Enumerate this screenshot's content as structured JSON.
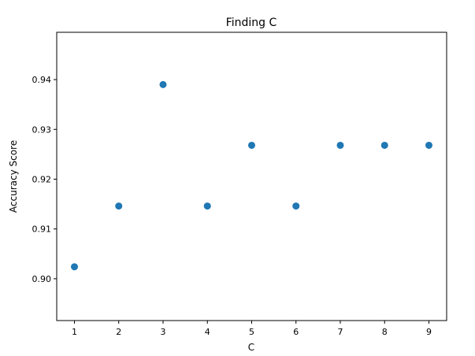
{
  "chart_data": {
    "type": "scatter",
    "title": "Finding C",
    "xlabel": "C",
    "ylabel": "Accuracy Score",
    "x": [
      1,
      2,
      3,
      4,
      5,
      6,
      7,
      8,
      9
    ],
    "y": [
      0.9024,
      0.9146,
      0.939,
      0.9146,
      0.9268,
      0.9146,
      0.9268,
      0.9268,
      0.9268
    ],
    "xlim": [
      0.6,
      9.4
    ],
    "ylim": [
      0.8916,
      0.9495
    ],
    "xticks": [
      1,
      2,
      3,
      4,
      5,
      6,
      7,
      8,
      9
    ],
    "xtick_labels": [
      "1",
      "2",
      "3",
      "4",
      "5",
      "6",
      "7",
      "8",
      "9"
    ],
    "yticks": [
      0.9,
      0.91,
      0.92,
      0.93,
      0.94
    ],
    "ytick_labels": [
      "0.90",
      "0.91",
      "0.92",
      "0.93",
      "0.94"
    ],
    "grid": false,
    "marker_color": "#1f77b4"
  }
}
